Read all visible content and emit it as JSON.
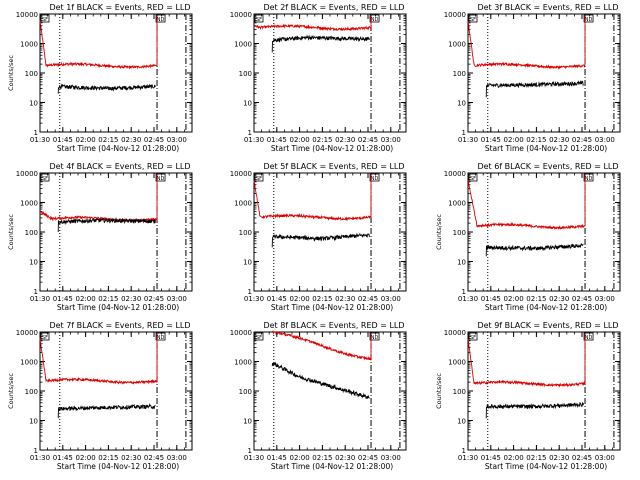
{
  "chart_data": [
    {
      "type": "line",
      "title": "Det 1f BLACK = Events, RED = LLD",
      "xlabel": "Start Time (04-Nov-12 01:28:00)",
      "ylabel": "Counts/sec",
      "xlim": [
        "01:30",
        "03:10"
      ],
      "ylim": [
        1,
        10000
      ],
      "yscale": "log",
      "x_ticks": [
        "01:30",
        "01:45",
        "02:00",
        "02:15",
        "02:30",
        "02:45",
        "03:00"
      ],
      "y_ticks": [
        "1",
        "10",
        "100",
        "1000",
        "10000"
      ],
      "events_rate": {
        "start": "01:42",
        "end": "02:46",
        "start_value": 35,
        "end_value": 35,
        "dip_value": 30,
        "dip_at": "02:15",
        "initial_drop": 20
      },
      "lld_rate": {
        "start": "01:30",
        "end": "02:47",
        "start_value": 6000,
        "level_value": 180,
        "drop_end": "01:34",
        "end_spike": 9000
      },
      "markers": {
        "dotted": "01:43",
        "dashdot": [
          "02:47",
          "03:06"
        ]
      },
      "labels": [
        "SF",
        "ND"
      ]
    },
    {
      "type": "line",
      "title": "Det 2f BLACK = Events, RED = LLD",
      "xlabel": "Start Time (04-Nov-12 01:28:00)",
      "ylabel": "",
      "xlim": [
        "01:30",
        "03:10"
      ],
      "ylim": [
        1,
        10000
      ],
      "yscale": "log",
      "x_ticks": [
        "01:30",
        "01:45",
        "02:00",
        "02:15",
        "02:30",
        "02:45",
        "03:00"
      ],
      "y_ticks": [
        "1",
        "10",
        "100",
        "1000",
        "10000"
      ],
      "events_rate": {
        "start": "01:42",
        "end": "02:46",
        "start_value": 1300,
        "end_value": 1400,
        "dip_value": 1600,
        "dip_at": "02:05",
        "initial_drop": 500
      },
      "lld_rate": {
        "start": "01:30",
        "end": "02:47",
        "start_value": 4000,
        "level_value": 3500,
        "drop_end": "01:34",
        "end_spike": 9000
      },
      "markers": {
        "dotted": "01:43",
        "dashdot": [
          "02:47",
          "03:06"
        ]
      },
      "labels": [
        "SF",
        "ND"
      ]
    },
    {
      "type": "line",
      "title": "Det 3f BLACK = Events, RED = LLD",
      "xlabel": "Start Time (04-Nov-12 01:28:00)",
      "ylabel": "",
      "xlim": [
        "01:30",
        "03:10"
      ],
      "ylim": [
        1,
        10000
      ],
      "yscale": "log",
      "x_ticks": [
        "01:30",
        "01:45",
        "02:00",
        "02:15",
        "02:30",
        "02:45",
        "03:00"
      ],
      "y_ticks": [
        "1",
        "10",
        "100",
        "1000",
        "10000"
      ],
      "events_rate": {
        "start": "01:42",
        "end": "02:46",
        "start_value": 38,
        "end_value": 45,
        "dip_value": 40,
        "dip_at": "02:10",
        "initial_drop": 15
      },
      "lld_rate": {
        "start": "01:30",
        "end": "02:47",
        "start_value": 6000,
        "level_value": 180,
        "drop_end": "01:34",
        "end_spike": 9000
      },
      "markers": {
        "dotted": "01:43",
        "dashdot": [
          "02:47",
          "03:06"
        ]
      },
      "labels": [
        "SF",
        "ND"
      ]
    },
    {
      "type": "line",
      "title": "Det 4f BLACK = Events, RED = LLD",
      "xlabel": "Start Time (04-Nov-12 01:28:00)",
      "ylabel": "Counts/sec",
      "xlim": [
        "01:30",
        "03:10"
      ],
      "ylim": [
        1,
        10000
      ],
      "yscale": "log",
      "x_ticks": [
        "01:30",
        "01:45",
        "02:00",
        "02:15",
        "02:30",
        "02:45",
        "03:00"
      ],
      "y_ticks": [
        "1",
        "10",
        "100",
        "1000",
        "10000"
      ],
      "events_rate": {
        "start": "01:42",
        "end": "02:46",
        "start_value": 220,
        "end_value": 230,
        "dip_value": 250,
        "dip_at": "02:10",
        "initial_drop": 100
      },
      "lld_rate": {
        "start": "01:30",
        "end": "02:47",
        "start_value": 500,
        "level_value": 280,
        "drop_end": "01:38",
        "end_spike": 9000
      },
      "markers": {
        "dotted": "01:43",
        "dashdot": [
          "02:47",
          "03:06"
        ]
      },
      "labels": [
        "SF",
        "ND"
      ]
    },
    {
      "type": "line",
      "title": "Det 5f BLACK = Events, RED = LLD",
      "xlabel": "Start Time (04-Nov-12 01:28:00)",
      "ylabel": "",
      "xlim": [
        "01:30",
        "03:10"
      ],
      "ylim": [
        1,
        10000
      ],
      "yscale": "log",
      "x_ticks": [
        "01:30",
        "01:45",
        "02:00",
        "02:15",
        "02:30",
        "02:45",
        "03:00"
      ],
      "y_ticks": [
        "1",
        "10",
        "100",
        "1000",
        "10000"
      ],
      "events_rate": {
        "start": "01:42",
        "end": "02:46",
        "start_value": 70,
        "end_value": 80,
        "dip_value": 60,
        "dip_at": "02:15",
        "initial_drop": 30
      },
      "lld_rate": {
        "start": "01:30",
        "end": "02:47",
        "start_value": 6000,
        "level_value": 320,
        "drop_end": "01:34",
        "end_spike": 9000
      },
      "markers": {
        "dotted": "01:43",
        "dashdot": [
          "02:47",
          "03:06"
        ]
      },
      "labels": [
        "SF",
        "ND"
      ]
    },
    {
      "type": "line",
      "title": "Det 6f BLACK = Events, RED = LLD",
      "xlabel": "Start Time (04-Nov-12 01:28:00)",
      "ylabel": "Counts/sec",
      "xlim": [
        "01:30",
        "03:10"
      ],
      "ylim": [
        1,
        10000
      ],
      "yscale": "log",
      "x_ticks": [
        "01:30",
        "01:45",
        "02:00",
        "02:15",
        "02:30",
        "02:45",
        "03:00"
      ],
      "y_ticks": [
        "1",
        "10",
        "100",
        "1000",
        "10000"
      ],
      "events_rate": {
        "start": "01:42",
        "end": "02:46",
        "start_value": 30,
        "end_value": 35,
        "dip_value": 28,
        "dip_at": "02:15",
        "initial_drop": 15
      },
      "lld_rate": {
        "start": "01:30",
        "end": "02:47",
        "start_value": 6000,
        "level_value": 160,
        "drop_end": "01:36",
        "end_spike": 9000
      },
      "markers": {
        "dotted": "01:43",
        "dashdot": [
          "02:47",
          "03:06"
        ]
      },
      "labels": [
        "SF",
        "ND"
      ]
    },
    {
      "type": "line",
      "title": "Det 7f BLACK = Events, RED = LLD",
      "xlabel": "Start Time (04-Nov-12 01:28:00)",
      "ylabel": "Counts/sec",
      "xlim": [
        "01:30",
        "03:10"
      ],
      "ylim": [
        1,
        10000
      ],
      "yscale": "log",
      "x_ticks": [
        "01:30",
        "01:45",
        "02:00",
        "02:15",
        "02:30",
        "02:45",
        "03:00"
      ],
      "y_ticks": [
        "1",
        "10",
        "100",
        "1000",
        "10000"
      ],
      "events_rate": {
        "start": "01:42",
        "end": "02:46",
        "start_value": 25,
        "end_value": 30,
        "dip_value": 28,
        "dip_at": "02:15",
        "initial_drop": 12
      },
      "lld_rate": {
        "start": "01:30",
        "end": "02:47",
        "start_value": 6000,
        "level_value": 220,
        "drop_end": "01:34",
        "end_spike": 9000
      },
      "markers": {
        "dotted": "01:43",
        "dashdot": [
          "02:47",
          "03:06"
        ]
      },
      "labels": [
        "SF",
        "ND"
      ]
    },
    {
      "type": "line",
      "title": "Det 8f BLACK = Events, RED = LLD",
      "xlabel": "Start Time (04-Nov-12 01:28:00)",
      "ylabel": "",
      "xlim": [
        "01:30",
        "03:10"
      ],
      "ylim": [
        1,
        10000
      ],
      "yscale": "log",
      "x_ticks": [
        "01:30",
        "01:45",
        "02:00",
        "02:15",
        "02:30",
        "02:45",
        "03:00"
      ],
      "y_ticks": [
        "1",
        "10",
        "100",
        "1000",
        "10000"
      ],
      "events_rate": {
        "start": "01:42",
        "end": "02:46",
        "start_value": 900,
        "end_value": 60,
        "dip_value": 300,
        "dip_at": "02:00",
        "initial_drop": 700
      },
      "lld_rate": {
        "start": "01:42",
        "end": "02:47",
        "start_value": 10000,
        "level_value": 1200,
        "drop_end": "01:42",
        "end_spike": 9000
      },
      "markers": {
        "dotted": "01:43",
        "dashdot": [
          "02:47",
          "03:06"
        ]
      },
      "labels": [
        "SF",
        "ND"
      ]
    },
    {
      "type": "line",
      "title": "Det 9f BLACK = Events, RED = LLD",
      "xlabel": "Start Time (04-Nov-12 01:28:00)",
      "ylabel": "Counts/sec",
      "xlim": [
        "01:30",
        "03:10"
      ],
      "ylim": [
        1,
        10000
      ],
      "yscale": "log",
      "x_ticks": [
        "01:30",
        "01:45",
        "02:00",
        "02:15",
        "02:30",
        "02:45",
        "03:00"
      ],
      "y_ticks": [
        "1",
        "10",
        "100",
        "1000",
        "10000"
      ],
      "events_rate": {
        "start": "01:42",
        "end": "02:46",
        "start_value": 30,
        "end_value": 35,
        "dip_value": 30,
        "dip_at": "02:15",
        "initial_drop": 12
      },
      "lld_rate": {
        "start": "01:30",
        "end": "02:47",
        "start_value": 6000,
        "level_value": 180,
        "drop_end": "01:34",
        "end_spike": 9000
      },
      "markers": {
        "dotted": "01:43",
        "dashdot": [
          "02:47",
          "03:06"
        ]
      },
      "labels": [
        "SF",
        "ND"
      ]
    }
  ],
  "colors": {
    "events": "#000000",
    "lld": "#dd0000",
    "axes": "#000000",
    "background": "#ffffff"
  }
}
